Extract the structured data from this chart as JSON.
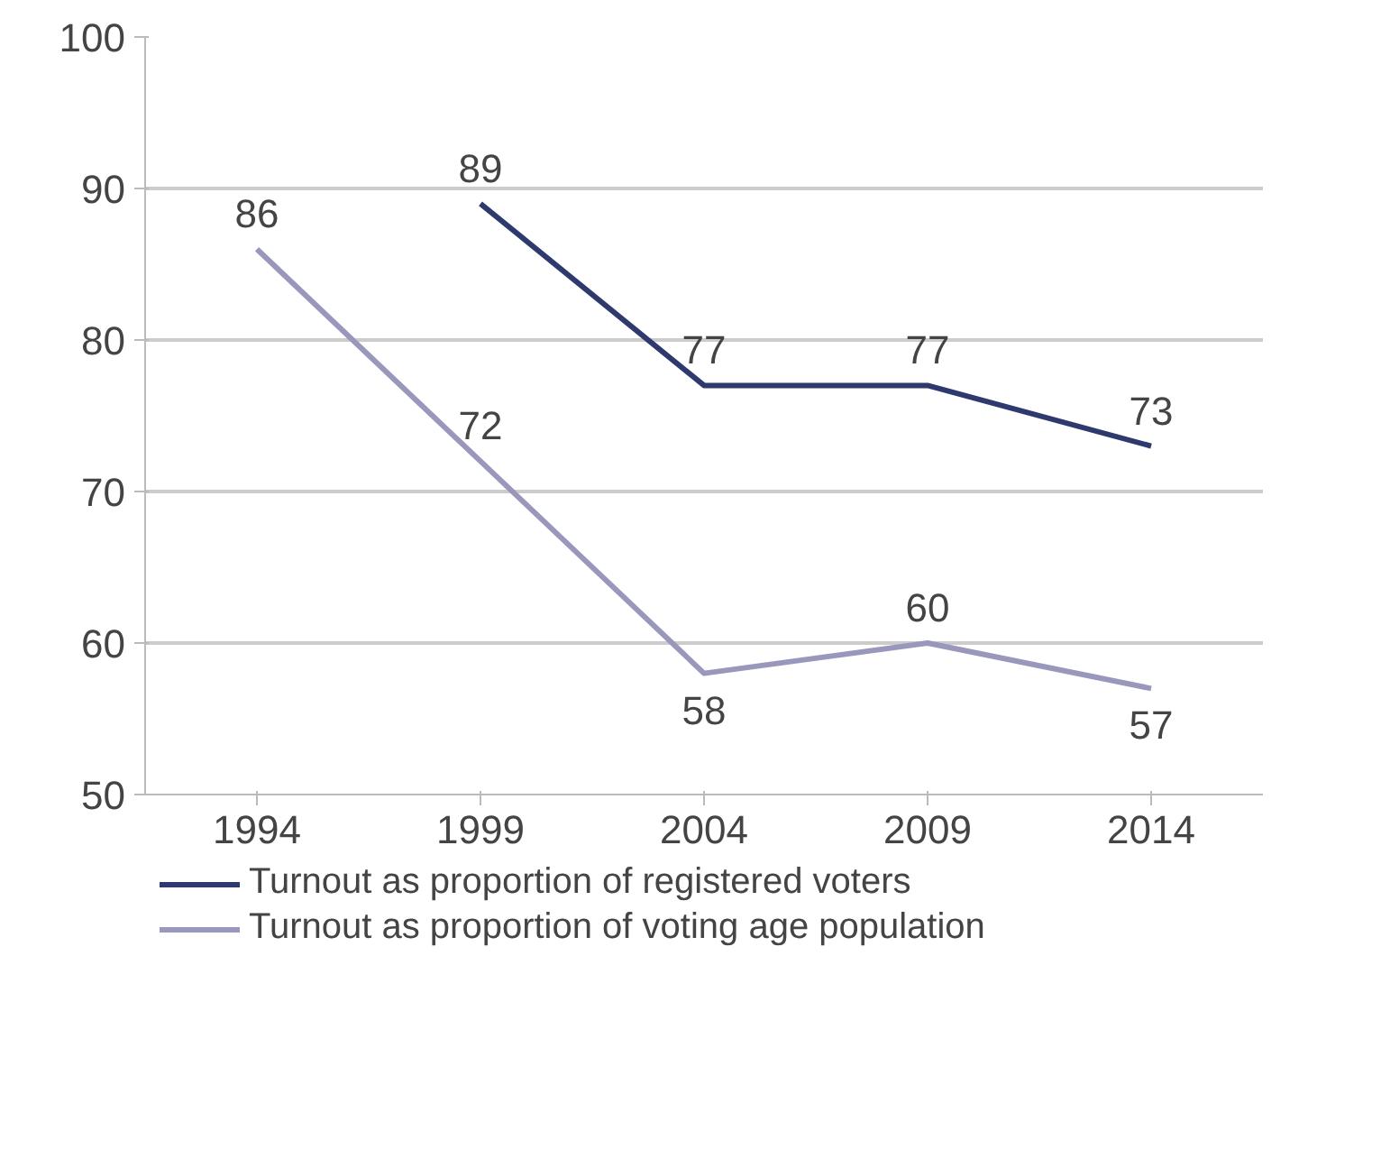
{
  "chart_data": {
    "type": "line",
    "categories": [
      "1994",
      "1999",
      "2004",
      "2009",
      "2014"
    ],
    "series": [
      {
        "name": "Turnout as proportion of registered voters",
        "color": "#2e3a6e",
        "values": [
          null,
          89,
          77,
          77,
          73
        ]
      },
      {
        "name": "Turnout as proportion of voting age population",
        "color": "#9a97bd",
        "values": [
          86,
          72,
          58,
          60,
          57
        ]
      }
    ],
    "ylim": [
      50,
      100
    ],
    "yticks": [
      50,
      60,
      70,
      80,
      90,
      100
    ],
    "grid": "y",
    "legend": "bottom",
    "data_labels": true,
    "marker": "none",
    "line_style": "solid"
  }
}
